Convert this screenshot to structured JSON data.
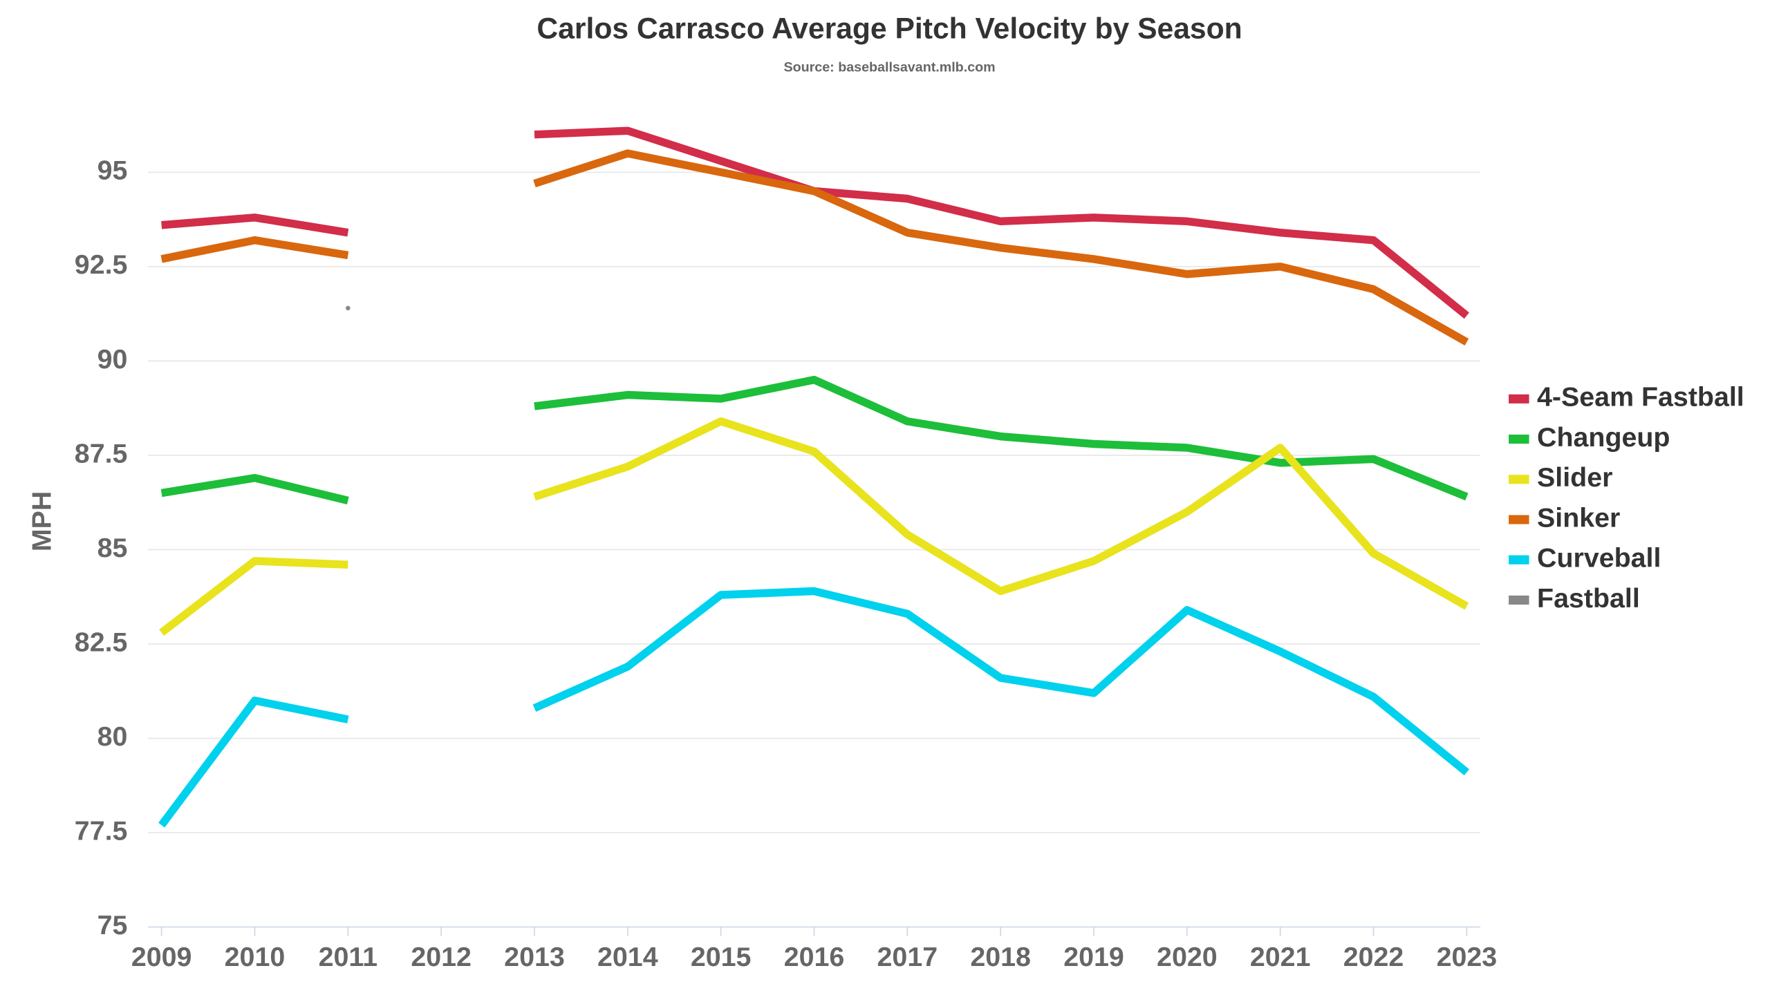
{
  "chart_data": {
    "type": "line",
    "title": "Carlos Carrasco Average Pitch Velocity by Season",
    "subtitle": "Source: baseballsavant.mlb.com",
    "y_label": "MPH",
    "categories": [
      "2009",
      "2010",
      "2011",
      "2012",
      "2013",
      "2014",
      "2015",
      "2016",
      "2017",
      "2018",
      "2019",
      "2020",
      "2021",
      "2022",
      "2023"
    ],
    "ylim": [
      75,
      97
    ],
    "yticks": [
      75,
      77.5,
      80,
      82.5,
      85,
      87.5,
      90,
      92.5,
      95
    ],
    "grid": true,
    "legend": "right",
    "series": [
      {
        "name": "4-Seam Fastball",
        "color": "#d22d49",
        "values": [
          93.6,
          93.8,
          93.4,
          null,
          96.0,
          96.1,
          95.3,
          94.5,
          94.3,
          93.7,
          93.8,
          93.7,
          93.4,
          93.2,
          91.2
        ]
      },
      {
        "name": "Changeup",
        "color": "#1dbe3a",
        "values": [
          86.5,
          86.9,
          86.3,
          null,
          88.8,
          89.1,
          89.0,
          89.5,
          88.4,
          88.0,
          87.8,
          87.7,
          87.3,
          87.4,
          86.4
        ]
      },
      {
        "name": "Slider",
        "color": "#e8e31c",
        "values": [
          82.8,
          84.7,
          84.6,
          null,
          86.4,
          87.2,
          88.4,
          87.6,
          85.4,
          83.9,
          84.7,
          86.0,
          87.7,
          84.9,
          83.5
        ]
      },
      {
        "name": "Sinker",
        "color": "#d9670e",
        "values": [
          92.7,
          93.2,
          92.8,
          null,
          94.7,
          95.5,
          95.0,
          94.5,
          93.4,
          93.0,
          92.7,
          92.3,
          92.5,
          91.9,
          90.5
        ]
      },
      {
        "name": "Curveball",
        "color": "#00d1ed",
        "values": [
          77.7,
          81.0,
          80.5,
          null,
          80.8,
          81.9,
          83.8,
          83.9,
          83.3,
          81.6,
          81.2,
          83.4,
          82.3,
          81.1,
          79.1
        ]
      },
      {
        "name": "Fastball",
        "color": "#888888",
        "values": [
          null,
          null,
          91.4,
          null,
          null,
          null,
          null,
          null,
          null,
          null,
          null,
          null,
          null,
          null,
          null
        ]
      }
    ]
  }
}
